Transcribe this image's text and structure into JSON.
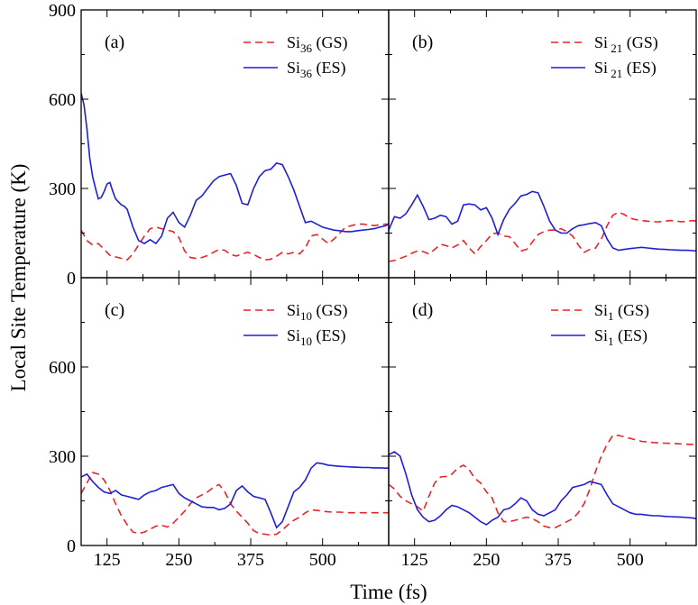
{
  "chart_data": {
    "type": "line",
    "ylabel": "Local Site Temperature (K)",
    "xlabel": "Time (fs)",
    "xlim": [
      80,
      615
    ],
    "ylim": [
      0,
      900
    ],
    "xticks": [
      125,
      250,
      375,
      500
    ],
    "yticks": [
      0,
      300,
      600,
      900
    ],
    "grid": false,
    "colors": {
      "gs": "#e8242a",
      "es": "#1f1fd6"
    },
    "panels": [
      {
        "label": "(a)",
        "series": [
          {
            "name_main": "Si",
            "name_sub": "36",
            "name_suffix": " (GS)",
            "style": "dashed",
            "x": [
              80,
              90,
              100,
              110,
              120,
              130,
              140,
              150,
              160,
              170,
              180,
              190,
              200,
              210,
              220,
              230,
              240,
              250,
              260,
              270,
              280,
              290,
              300,
              310,
              320,
              330,
              340,
              350,
              360,
              370,
              380,
              390,
              400,
              410,
              420,
              430,
              440,
              450,
              460,
              470,
              480,
              490,
              500,
              510,
              520,
              530,
              540,
              550,
              560,
              570,
              580,
              590,
              600,
              610,
              615
            ],
            "y": [
              160,
              125,
              110,
              115,
              95,
              75,
              70,
              65,
              60,
              80,
              110,
              140,
              165,
              170,
              165,
              160,
              155,
              135,
              90,
              68,
              65,
              68,
              75,
              85,
              95,
              92,
              78,
              73,
              80,
              85,
              78,
              68,
              60,
              62,
              72,
              85,
              80,
              85,
              80,
              100,
              140,
              145,
              130,
              115,
              130,
              150,
              170,
              175,
              180,
              180,
              178,
              175,
              178,
              180,
              180
            ]
          },
          {
            "name_main": "Si",
            "name_sub": "36",
            "name_suffix": " (ES)",
            "style": "solid",
            "x": [
              80,
              85,
              90,
              95,
              100,
              105,
              110,
              115,
              120,
              125,
              130,
              135,
              140,
              145,
              150,
              155,
              160,
              170,
              180,
              190,
              200,
              210,
              220,
              230,
              240,
              250,
              260,
              270,
              280,
              290,
              300,
              310,
              320,
              330,
              340,
              350,
              360,
              370,
              380,
              390,
              400,
              410,
              420,
              430,
              440,
              450,
              460,
              470,
              480,
              490,
              500,
              510,
              520,
              530,
              540,
              550,
              560,
              570,
              580,
              590,
              600,
              610,
              615
            ],
            "y": [
              620,
              580,
              500,
              400,
              340,
              300,
              265,
              270,
              290,
              315,
              320,
              290,
              265,
              255,
              245,
              240,
              230,
              170,
              125,
              115,
              128,
              115,
              140,
              200,
              220,
              185,
              170,
              210,
              260,
              275,
              300,
              325,
              340,
              345,
              350,
              310,
              250,
              245,
              300,
              340,
              360,
              365,
              385,
              380,
              340,
              295,
              240,
              185,
              190,
              180,
              170,
              165,
              160,
              158,
              155,
              155,
              158,
              160,
              162,
              165,
              170,
              175,
              180
            ]
          }
        ]
      },
      {
        "label": "(b)",
        "series": [
          {
            "name_main": "Si",
            "name_sub": " 21",
            "name_suffix": " (GS)",
            "style": "dashed",
            "x": [
              80,
              90,
              100,
              110,
              120,
              130,
              140,
              150,
              160,
              170,
              180,
              190,
              200,
              210,
              220,
              230,
              240,
              250,
              260,
              270,
              280,
              290,
              300,
              310,
              320,
              330,
              340,
              350,
              360,
              370,
              380,
              390,
              400,
              410,
              420,
              430,
              440,
              450,
              460,
              470,
              480,
              490,
              500,
              510,
              520,
              530,
              540,
              550,
              560,
              570,
              580,
              590,
              600,
              610,
              615
            ],
            "y": [
              55,
              58,
              65,
              72,
              82,
              90,
              88,
              80,
              95,
              112,
              108,
              100,
              110,
              125,
              100,
              80,
              105,
              125,
              148,
              150,
              140,
              138,
              115,
              90,
              95,
              120,
              145,
              155,
              160,
              160,
              165,
              155,
              140,
              110,
              85,
              95,
              100,
              130,
              175,
              210,
              220,
              212,
              200,
              195,
              192,
              190,
              188,
              188,
              190,
              192,
              190,
              188,
              190,
              192,
              190
            ]
          },
          {
            "name_main": "Si",
            "name_sub": " 21",
            "name_suffix": " (ES)",
            "style": "solid",
            "x": [
              80,
              90,
              100,
              110,
              120,
              130,
              140,
              150,
              160,
              170,
              180,
              190,
              200,
              210,
              220,
              230,
              240,
              250,
              260,
              270,
              280,
              290,
              300,
              310,
              320,
              330,
              340,
              350,
              360,
              370,
              380,
              390,
              400,
              410,
              420,
              430,
              440,
              450,
              460,
              470,
              480,
              490,
              500,
              510,
              520,
              530,
              540,
              550,
              560,
              570,
              580,
              590,
              600,
              610,
              615
            ],
            "y": [
              160,
              205,
              200,
              215,
              245,
              278,
              240,
              195,
              200,
              210,
              205,
              180,
              190,
              245,
              248,
              245,
              228,
              235,
              200,
              145,
              195,
              230,
              250,
              275,
              280,
              290,
              285,
              240,
              190,
              160,
              150,
              150,
              165,
              175,
              178,
              182,
              185,
              175,
              130,
              100,
              92,
              95,
              98,
              100,
              102,
              100,
              98,
              96,
              95,
              94,
              93,
              92,
              92,
              91,
              90
            ]
          }
        ]
      },
      {
        "label": "(c)",
        "series": [
          {
            "name_main": "Si",
            "name_sub": "10",
            "name_suffix": " (GS)",
            "style": "dashed",
            "x": [
              80,
              90,
              100,
              110,
              120,
              130,
              140,
              150,
              160,
              170,
              180,
              190,
              200,
              210,
              220,
              230,
              240,
              250,
              260,
              270,
              280,
              290,
              300,
              310,
              320,
              330,
              340,
              350,
              360,
              370,
              380,
              390,
              400,
              410,
              420,
              430,
              440,
              450,
              460,
              470,
              480,
              490,
              500,
              510,
              520,
              530,
              540,
              550,
              560,
              570,
              580,
              590,
              600,
              610,
              615
            ],
            "y": [
              175,
              210,
              245,
              240,
              220,
              185,
              140,
              100,
              70,
              45,
              40,
              45,
              55,
              65,
              68,
              62,
              75,
              95,
              115,
              140,
              160,
              170,
              180,
              195,
              205,
              180,
              140,
              115,
              95,
              75,
              50,
              40,
              38,
              35,
              38,
              52,
              70,
              85,
              95,
              110,
              120,
              118,
              115,
              113,
              112,
              112,
              111,
              110,
              110,
              110,
              110,
              110,
              110,
              110,
              110
            ]
          },
          {
            "name_main": "Si",
            "name_sub": "10",
            "name_suffix": " (ES)",
            "style": "solid",
            "x": [
              80,
              90,
              100,
              110,
              120,
              130,
              140,
              150,
              160,
              170,
              180,
              190,
              200,
              210,
              220,
              230,
              240,
              250,
              260,
              270,
              280,
              290,
              300,
              310,
              320,
              330,
              340,
              350,
              360,
              370,
              380,
              390,
              400,
              410,
              420,
              430,
              440,
              450,
              460,
              470,
              480,
              490,
              500,
              510,
              520,
              530,
              540,
              550,
              560,
              570,
              580,
              590,
              600,
              610,
              615
            ],
            "y": [
              230,
              240,
              215,
              195,
              180,
              175,
              185,
              170,
              165,
              160,
              155,
              170,
              180,
              185,
              195,
              200,
              205,
              175,
              160,
              150,
              140,
              130,
              128,
              128,
              120,
              125,
              140,
              185,
              200,
              180,
              165,
              160,
              155,
              110,
              60,
              80,
              130,
              180,
              195,
              220,
              260,
              278,
              275,
              270,
              268,
              266,
              265,
              264,
              263,
              262,
              262,
              261,
              261,
              260,
              260
            ]
          }
        ]
      },
      {
        "label": "(d)",
        "series": [
          {
            "name_main": "Si",
            "name_sub": "1",
            "name_suffix": " (GS)",
            "style": "dashed",
            "x": [
              80,
              90,
              100,
              110,
              120,
              130,
              140,
              150,
              160,
              170,
              180,
              190,
              200,
              210,
              220,
              230,
              240,
              250,
              260,
              270,
              280,
              290,
              300,
              310,
              320,
              330,
              340,
              350,
              360,
              370,
              380,
              390,
              400,
              410,
              420,
              430,
              440,
              450,
              460,
              470,
              480,
              490,
              500,
              510,
              520,
              530,
              540,
              550,
              560,
              570,
              580,
              590,
              600,
              610,
              615
            ],
            "y": [
              205,
              190,
              165,
              150,
              140,
              130,
              115,
              165,
              210,
              230,
              232,
              240,
              260,
              270,
              255,
              225,
              210,
              180,
              160,
              110,
              80,
              80,
              85,
              90,
              95,
              90,
              80,
              65,
              60,
              60,
              70,
              80,
              90,
              110,
              140,
              190,
              250,
              300,
              340,
              370,
              370,
              365,
              360,
              355,
              350,
              348,
              346,
              345,
              344,
              343,
              342,
              341,
              340,
              340,
              340
            ]
          },
          {
            "name_main": "Si",
            "name_sub": "1",
            "name_suffix": " (ES)",
            "style": "solid",
            "x": [
              80,
              90,
              100,
              110,
              120,
              130,
              140,
              150,
              160,
              170,
              180,
              190,
              200,
              210,
              220,
              230,
              240,
              250,
              260,
              270,
              280,
              290,
              300,
              310,
              320,
              330,
              340,
              350,
              360,
              370,
              380,
              390,
              400,
              410,
              420,
              430,
              440,
              450,
              460,
              470,
              480,
              490,
              500,
              510,
              520,
              530,
              540,
              550,
              560,
              570,
              580,
              590,
              600,
              610,
              615
            ],
            "y": [
              305,
              315,
              300,
              240,
              170,
              120,
              95,
              80,
              85,
              100,
              120,
              135,
              130,
              120,
              110,
              95,
              80,
              70,
              85,
              95,
              120,
              125,
              140,
              160,
              150,
              120,
              105,
              100,
              110,
              120,
              150,
              170,
              195,
              200,
              205,
              215,
              210,
              205,
              170,
              140,
              130,
              120,
              110,
              105,
              105,
              102,
              100,
              100,
              98,
              97,
              96,
              95,
              94,
              92,
              90
            ]
          }
        ]
      }
    ]
  }
}
